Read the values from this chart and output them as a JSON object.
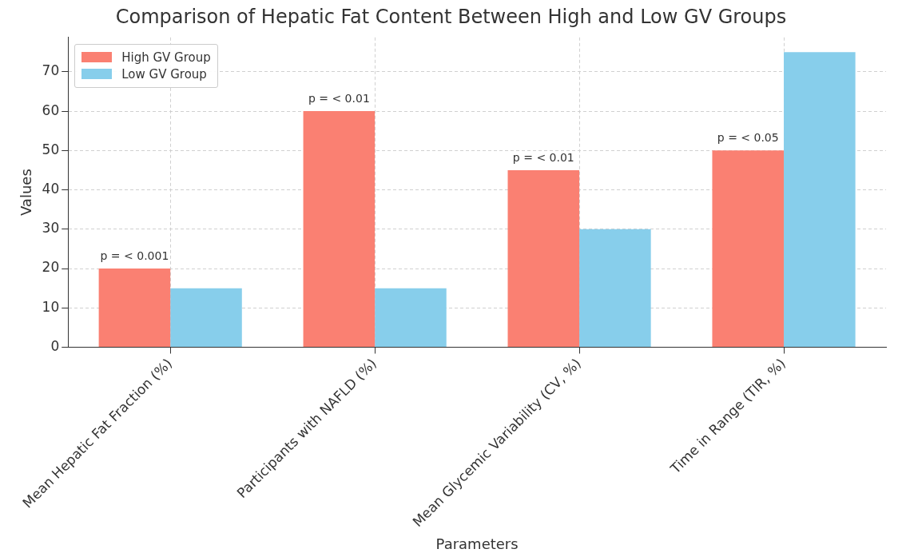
{
  "chart_data": {
    "type": "bar",
    "title": "Comparison of Hepatic Fat Content Between High and Low GV Groups",
    "xlabel": "Parameters",
    "ylabel": "Values",
    "categories": [
      "Mean Hepatic Fat Fraction (%)",
      "Participants with NAFLD (%)",
      "Mean Glycemic Variability (CV, %)",
      "Time in Range (TIR, %)"
    ],
    "series": [
      {
        "name": "High GV Group",
        "color": "#fa8072",
        "values": [
          20,
          60,
          45,
          50
        ]
      },
      {
        "name": "Low GV Group",
        "color": "#87ceeb",
        "values": [
          15,
          15,
          30,
          75
        ]
      }
    ],
    "ylim": [
      0,
      78.75
    ],
    "yticks": [
      0,
      10,
      20,
      30,
      40,
      50,
      60,
      70
    ],
    "grid": true,
    "legend": "top left",
    "annotations": [
      {
        "text": "p = < 0.001",
        "x": "Mean Hepatic Fat Fraction (%)",
        "y": 20
      },
      {
        "text": "p = < 0.01",
        "x": "Participants with NAFLD (%)",
        "y": 60
      },
      {
        "text": "p = < 0.01",
        "x": "Mean Glycemic Variability (CV, %)",
        "y": 45
      },
      {
        "text": "p = < 0.05",
        "x": "Time in Range (TIR, %)",
        "y": 50
      }
    ]
  }
}
